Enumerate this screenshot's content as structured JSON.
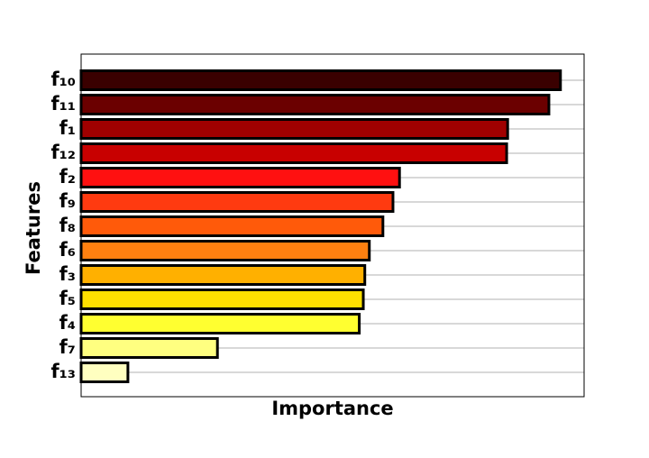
{
  "chart_data": {
    "type": "barh",
    "xlabel": "Importance",
    "ylabel": "Features",
    "categories": [
      "f₁₀",
      "f₁₁",
      "f₁",
      "f₁₂",
      "f₂",
      "f₉",
      "f₈",
      "f₆",
      "f₃",
      "f₅",
      "f₄",
      "f₇",
      "f₁₃"
    ],
    "values": [
      0.953,
      0.93,
      0.848,
      0.846,
      0.633,
      0.62,
      0.6,
      0.573,
      0.564,
      0.561,
      0.553,
      0.271,
      0.093
    ],
    "colors": [
      "#3a0000",
      "#6b0000",
      "#a00000",
      "#c80000",
      "#ff1010",
      "#ff3a10",
      "#ff5a0a",
      "#ff8010",
      "#ffb000",
      "#ffe000",
      "#ffff30",
      "#ffff80",
      "#ffffc0"
    ],
    "xlim": [
      0,
      1
    ],
    "grid": true
  }
}
